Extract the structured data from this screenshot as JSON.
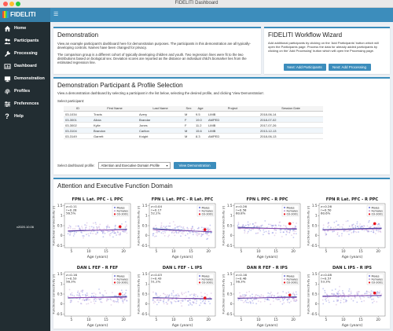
{
  "window": {
    "title": "FIDELITI Dashboard"
  },
  "app": {
    "brand": "FIDELITI",
    "version": "v2020.10.06"
  },
  "sidebar": {
    "items": [
      {
        "label": "Home",
        "icon": "home-icon"
      },
      {
        "label": "Participants",
        "icon": "users-icon"
      },
      {
        "label": "Processing",
        "icon": "wrench-icon"
      },
      {
        "label": "Dashboard",
        "icon": "dashboard-icon"
      },
      {
        "label": "Demonstration",
        "icon": "monitor-icon"
      },
      {
        "label": "Profiles",
        "icon": "fingerprint-icon"
      },
      {
        "label": "Preferences",
        "icon": "sliders-icon"
      },
      {
        "label": "Help",
        "icon": "question-icon"
      }
    ]
  },
  "demo": {
    "title": "Demonstration",
    "p1": "View an example participant's dashboard here for demonstration purposes. The participants in this demonstration are all typically-developing controls. Names have been changed for privacy.",
    "p2": "The comparison group is a different cohort of typically developing children and youth. Two regression lines were fit to the two distributions based on biological sex. Deviation scores are reported as the distance an individual child's biomarker lies from the estimated regression line."
  },
  "wizard": {
    "title": "FIDELITI Workflow Wizard",
    "text": "Add additional participants by clicking on the 'Add Participants' button which will open the Participants page. Process the data for already added participants by clicking on the 'Add Processing' button which will open the Processing page.",
    "btn_participants": "Next: Add Participants",
    "btn_processing": "Next: Add Processing"
  },
  "selection": {
    "title": "Demonstration Participant & Profile Selection",
    "desc": "View a demonstration dashboard by selecting a participant in the list below, selecting the desired profile, and clicking 'View Demonstration'.",
    "select_label": "Select participant:",
    "columns": [
      "ID",
      "First Name",
      "Last Name",
      "Sex",
      "Age",
      "Project",
      "Session Date"
    ],
    "rows": [
      [
        "03-1034",
        "Travis",
        "Avery",
        "M",
        "9.5",
        "LIMB",
        "2018-06-14"
      ],
      [
        "03-3001",
        "Alicia",
        "Brandar",
        "F",
        "19.0",
        "AMPED",
        "2018-07-02"
      ],
      [
        "03-3002",
        "Kylie",
        "Jones",
        "F",
        "11.2",
        "LIMB",
        "2017-07-26"
      ],
      [
        "03-3104",
        "Brandon",
        "Carlton",
        "M",
        "15.6",
        "LIMB",
        "2013-12-13"
      ],
      [
        "03-3149",
        "Garrett",
        "Knight",
        "M",
        "8.3",
        "AMPED",
        "2018-06-13"
      ]
    ],
    "profile_label": "Select dashboard profile:",
    "profile_value": "Attention and Executive Domain Profile",
    "view_button": "View Demonstration"
  },
  "domain": {
    "title": "Attention and Executive Function Domain"
  },
  "chart_data": [
    {
      "type": "scatter",
      "title": "FPN L Lat. PFC - L PPC",
      "xlabel": "Age (years)",
      "ylabel": "Functional connectivity (r)",
      "stats": [
        "z=0.11",
        "r=0.28",
        "56.5%"
      ],
      "legend": [
        "Males",
        "Females",
        "03-3001"
      ],
      "xticks": [
        5,
        10,
        15,
        20
      ],
      "yticks": [
        -0.5,
        0,
        0.5,
        1,
        1.5
      ],
      "xlim": [
        3,
        22
      ],
      "ylim": [
        -0.6,
        1.6
      ],
      "male_fit": [
        [
          4,
          0.22
        ],
        [
          21,
          0.32
        ]
      ],
      "female_fit": [
        [
          4,
          0.25
        ],
        [
          21,
          0.3
        ]
      ],
      "highlight": [
        19.0,
        0.45
      ]
    },
    {
      "type": "scatter",
      "title": "FPN L Lat. PFC - R Lat. PFC",
      "xlabel": "Age (years)",
      "ylabel": "Functional connectivity (r)",
      "stats": [
        "z=0.04",
        "r=0.17",
        "52.2%"
      ],
      "legend": [
        "Males",
        "Females",
        "03-3001"
      ],
      "xticks": [
        5,
        10,
        15,
        20
      ],
      "yticks": [
        -0.5,
        0,
        0.5,
        1,
        1.5
      ],
      "xlim": [
        3,
        22
      ],
      "ylim": [
        -0.6,
        1.6
      ],
      "male_fit": [
        [
          4,
          0.35
        ],
        [
          21,
          0.18
        ]
      ],
      "female_fit": [
        [
          4,
          0.3
        ],
        [
          21,
          0.2
        ]
      ],
      "highlight": [
        19.0,
        0.3
      ]
    },
    {
      "type": "scatter",
      "title": "FPN L PPC - R PPC",
      "xlabel": "Age (years)",
      "ylabel": "Functional connectivity (r)",
      "stats": [
        "z=0.26",
        "r=0.58",
        "60.8%"
      ],
      "legend": [
        "Males",
        "Females",
        "03-3001"
      ],
      "xticks": [
        5,
        10,
        15,
        20
      ],
      "yticks": [
        -0.5,
        0,
        0.5,
        1,
        1.5
      ],
      "xlim": [
        3,
        22
      ],
      "ylim": [
        -0.6,
        1.6
      ],
      "male_fit": [
        [
          4,
          0.42
        ],
        [
          21,
          0.32
        ]
      ],
      "female_fit": [
        [
          4,
          0.38
        ],
        [
          21,
          0.35
        ]
      ],
      "highlight": [
        19.0,
        0.6
      ]
    },
    {
      "type": "scatter",
      "title": "FPN R Lat. PFC - R PPC",
      "xlabel": "Age (years)",
      "ylabel": "Functional connectivity (r)",
      "stats": [
        "z=0.26",
        "r=0.50",
        "60.6%"
      ],
      "legend": [
        "Males",
        "Females",
        "03-3001"
      ],
      "xticks": [
        5,
        10,
        15,
        20
      ],
      "yticks": [
        -0.5,
        0,
        0.5,
        1,
        1.5
      ],
      "xlim": [
        3,
        22
      ],
      "ylim": [
        -0.6,
        1.6
      ],
      "male_fit": [
        [
          4,
          0.3
        ],
        [
          21,
          0.38
        ]
      ],
      "female_fit": [
        [
          4,
          0.28
        ],
        [
          21,
          0.35
        ]
      ],
      "highlight": [
        19.0,
        0.6
      ]
    },
    {
      "type": "scatter",
      "title": "DAN L FEF - R FEF",
      "xlabel": "Age (years)",
      "ylabel": "Functional connectivity (r)",
      "stats": [
        "z=0.16",
        "r=0.53",
        "56.3%"
      ],
      "legend": [
        "Males",
        "Females",
        "03-3001"
      ],
      "xticks": [
        5,
        10,
        15,
        20
      ],
      "yticks": [
        -0.5,
        0,
        0.5,
        1,
        1.5
      ],
      "xlim": [
        3,
        22
      ],
      "ylim": [
        -0.6,
        1.6
      ],
      "male_fit": [
        [
          4,
          0.3
        ],
        [
          21,
          0.38
        ]
      ],
      "female_fit": [
        [
          4,
          0.32
        ],
        [
          21,
          0.34
        ]
      ],
      "highlight": [
        19.0,
        0.5
      ]
    },
    {
      "type": "scatter",
      "title": "DAN L FEF - L IPS",
      "xlabel": "Age (years)",
      "ylabel": "Functional connectivity (r)",
      "stats": [
        "z=0.03",
        "r=0.43",
        "51.2%"
      ],
      "legend": [
        "Males",
        "Females",
        "03-3001"
      ],
      "xticks": [
        5,
        10,
        15,
        20
      ],
      "yticks": [
        -0.5,
        0,
        0.5,
        1,
        1.5
      ],
      "xlim": [
        3,
        22
      ],
      "ylim": [
        -0.6,
        1.6
      ],
      "male_fit": [
        [
          4,
          0.32
        ],
        [
          21,
          0.25
        ]
      ],
      "female_fit": [
        [
          4,
          0.3
        ],
        [
          21,
          0.28
        ]
      ],
      "highlight": [
        19.0,
        0.3
      ]
    },
    {
      "type": "scatter",
      "title": "DAN R FEF - R IPS",
      "xlabel": "Age (years)",
      "ylabel": "Functional connectivity (r)",
      "stats": [
        "z=0.16",
        "r=0.46",
        "56.3%"
      ],
      "legend": [
        "Males",
        "Females",
        "03-3001"
      ],
      "xticks": [
        5,
        10,
        15,
        20
      ],
      "yticks": [
        -0.5,
        0,
        0.5,
        1,
        1.5
      ],
      "xlim": [
        3,
        22
      ],
      "ylim": [
        -0.6,
        1.6
      ],
      "male_fit": [
        [
          4,
          0.28
        ],
        [
          21,
          0.36
        ]
      ],
      "female_fit": [
        [
          4,
          0.3
        ],
        [
          21,
          0.33
        ]
      ],
      "highlight": [
        19.0,
        0.45
      ]
    },
    {
      "type": "scatter",
      "title": "DAN L IPS - R IPS",
      "xlabel": "Age (years)",
      "ylabel": "Functional connectivity (r)",
      "stats": [
        "z=0.08",
        "r=0.57",
        "53.3%"
      ],
      "legend": [
        "Males",
        "Females",
        "03-3001"
      ],
      "xticks": [
        5,
        10,
        15,
        20
      ],
      "yticks": [
        -0.5,
        0,
        0.5,
        1,
        1.5
      ],
      "xlim": [
        3,
        22
      ],
      "ylim": [
        -0.6,
        1.6
      ],
      "male_fit": [
        [
          4,
          0.4
        ],
        [
          21,
          0.42
        ]
      ],
      "female_fit": [
        [
          4,
          0.38
        ],
        [
          21,
          0.44
        ]
      ],
      "highlight": [
        19.0,
        0.55
      ]
    }
  ],
  "colors": {
    "accent": "#3c8dbc",
    "brand_bg": "#367fa9",
    "sidebar": "#222d32",
    "content_bg": "#ecf0f5",
    "male": "#7f86e0",
    "female": "#c9a7d6",
    "highlight": "#e8141c"
  }
}
